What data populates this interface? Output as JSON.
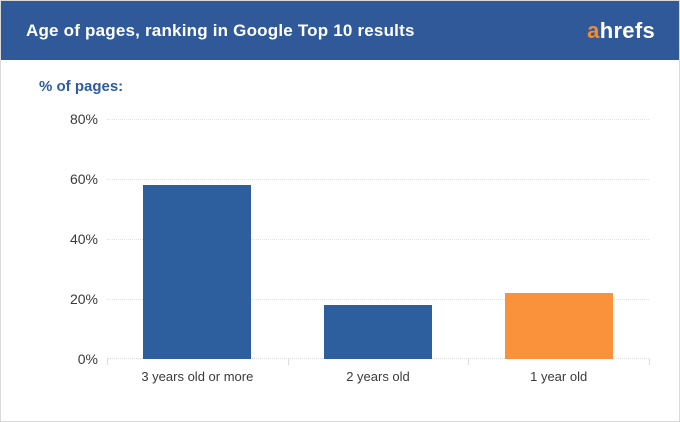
{
  "header": {
    "title": "Age of pages, ranking in Google Top 10 results",
    "bg_color": "#30599A",
    "logo": {
      "prefix": "a",
      "rest": "hrefs",
      "prefix_color": "#F28B2D",
      "rest_color": "#ffffff"
    }
  },
  "chart_data": {
    "type": "bar",
    "title": "Age of pages, ranking in Google Top 10 results",
    "ylabel": "% of pages:",
    "xlabel": "",
    "categories": [
      "3 years old or more",
      "2 years old",
      "1 year old"
    ],
    "values": [
      58,
      18,
      22
    ],
    "bar_colors": [
      "#2D5E9E",
      "#2D5E9E",
      "#F9923A"
    ],
    "ylim": [
      0,
      80
    ],
    "yticks": [
      0,
      20,
      40,
      60,
      80
    ],
    "ytick_suffix": "%",
    "grid": "horizontal-dotted",
    "legend": "none"
  },
  "colors": {
    "accent_blue": "#2D5E9E",
    "accent_orange": "#F9923A",
    "grid": "#e2e2e2",
    "tick_text": "#3a3a3a",
    "card_border": "#d9d9d9"
  }
}
